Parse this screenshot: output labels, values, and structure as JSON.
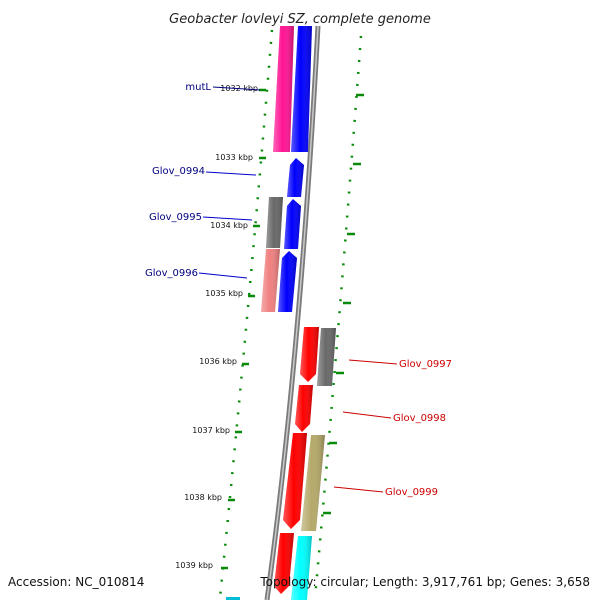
{
  "title": "Geobacter lovleyi SZ, complete genome",
  "accession": "Accession: NC_010814",
  "topology": "Topology: circular; Length: 3,917,761 bp; Genes: 3,658",
  "ticks": {
    "kbp_1032": "1032 kbp",
    "kbp_1033": "1033 kbp",
    "kbp_1034": "1034 kbp",
    "kbp_1035": "1035 kbp",
    "kbp_1036": "1036 kbp",
    "kbp_1037": "1037 kbp",
    "kbp_1038": "1038 kbp",
    "kbp_1039": "1039 kbp"
  },
  "genes": {
    "mutL": "mutL",
    "glov_0994": "Glov_0994",
    "glov_0995": "Glov_0995",
    "glov_0996": "Glov_0996",
    "glov_0997": "Glov_0997",
    "glov_0998": "Glov_0998",
    "glov_0999": "Glov_0999"
  },
  "colors": {
    "backbone": "#888888",
    "tick_mark": "#008000",
    "cds_forward": "#0000ff",
    "cds_reverse": "#ff0000",
    "pink": "#ff1493",
    "salmon": "#f08080",
    "gray": "#696969",
    "khaki": "#b5a96a",
    "cyan": "#00ffff",
    "label_left": "#000080",
    "label_right": "#cc0000"
  }
}
